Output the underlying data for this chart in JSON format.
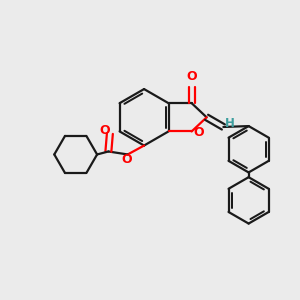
{
  "background_color": "#ebebeb",
  "bond_color": "#1a1a1a",
  "oxygen_color": "#ff0000",
  "hydrogen_color": "#3d9e9e",
  "line_width": 1.6,
  "figsize": [
    3.0,
    3.0
  ],
  "dpi": 100,
  "xlim": [
    0,
    10
  ],
  "ylim": [
    0,
    10
  ]
}
